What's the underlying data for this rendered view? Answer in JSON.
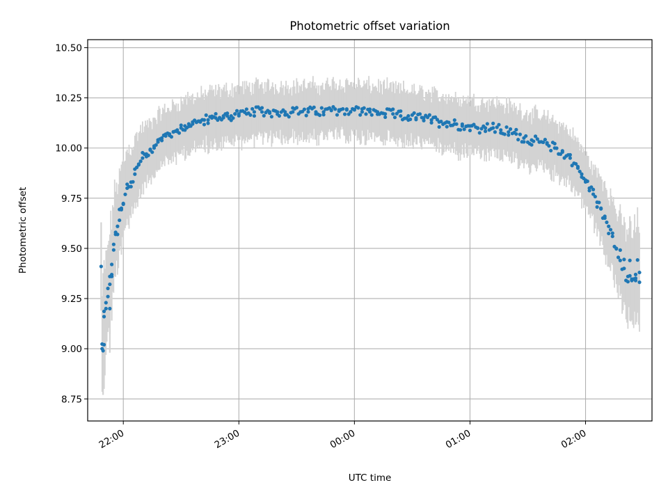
{
  "chart_data": {
    "type": "scatter",
    "title": "Photometric offset variation",
    "xlabel": "UTC time",
    "ylabel": "Photometric offset",
    "x_range_minutes_utc": [
      -138.5,
      154.5
    ],
    "ylim": [
      8.64,
      10.54
    ],
    "grid": true,
    "colors": {
      "points": "#1f77b4",
      "errorbars": "#d3d3d3",
      "grid": "#b0b0b0"
    },
    "xticks": [
      {
        "minutes": -120,
        "label": "22:00"
      },
      {
        "minutes": -60,
        "label": "23:00"
      },
      {
        "minutes": 0,
        "label": "00:00"
      },
      {
        "minutes": 60,
        "label": "01:00"
      },
      {
        "minutes": 120,
        "label": "02:00"
      }
    ],
    "yticks": [
      {
        "value": 8.75,
        "label": "8.75"
      },
      {
        "value": 9.0,
        "label": "9.00"
      },
      {
        "value": 9.25,
        "label": "9.25"
      },
      {
        "value": 9.5,
        "label": "9.50"
      },
      {
        "value": 9.75,
        "label": "9.75"
      },
      {
        "value": 10.0,
        "label": "10.00"
      },
      {
        "value": 10.25,
        "label": "10.25"
      },
      {
        "value": 10.5,
        "label": "10.50"
      }
    ],
    "series": [
      {
        "x": [
          -131,
          -130,
          -129,
          -128,
          -127,
          -126,
          -125,
          -124,
          -123,
          -122,
          -121,
          -120,
          -118,
          -116,
          -114,
          -112,
          -110,
          -108,
          -106,
          -104,
          -102,
          -100,
          -98,
          -96,
          -94,
          -92,
          -90,
          -88,
          -86,
          -84,
          -82,
          -80,
          -78,
          -76,
          -74,
          -72,
          -70,
          -68,
          -66,
          -64,
          -62,
          -60,
          -56,
          -52,
          -48,
          -44,
          -40,
          -36,
          -32,
          -28,
          -24,
          -20,
          -16,
          -12,
          -8,
          -4,
          0,
          4,
          8,
          12,
          16,
          20,
          24,
          28,
          32,
          36,
          40,
          44,
          48,
          52,
          56,
          60,
          64,
          68,
          72,
          76,
          80,
          84,
          88,
          92,
          96,
          100,
          104,
          108,
          112,
          116,
          118,
          120,
          122,
          124,
          126,
          128,
          130,
          132,
          134,
          136,
          138,
          140,
          142,
          144,
          146,
          148
        ],
        "y": [
          9.0,
          9.16,
          9.2,
          9.26,
          9.36,
          9.42,
          9.52,
          9.58,
          9.61,
          9.64,
          9.7,
          9.72,
          9.8,
          9.83,
          9.87,
          9.92,
          9.95,
          9.97,
          9.99,
          10.01,
          10.03,
          10.05,
          10.06,
          10.07,
          10.08,
          10.09,
          10.1,
          10.11,
          10.12,
          10.12,
          10.13,
          10.13,
          10.14,
          10.14,
          10.15,
          10.15,
          10.15,
          10.16,
          10.16,
          10.16,
          10.17,
          10.17,
          10.17,
          10.18,
          10.18,
          10.18,
          10.18,
          10.18,
          10.18,
          10.18,
          10.18,
          10.18,
          10.18,
          10.19,
          10.19,
          10.19,
          10.19,
          10.18,
          10.18,
          10.18,
          10.17,
          10.17,
          10.16,
          10.16,
          10.15,
          10.15,
          10.14,
          10.13,
          10.13,
          10.12,
          10.11,
          10.11,
          10.1,
          10.1,
          10.1,
          10.09,
          10.08,
          10.07,
          10.05,
          10.04,
          10.03,
          10.02,
          10.0,
          9.98,
          9.95,
          9.9,
          9.87,
          9.84,
          9.8,
          9.77,
          9.73,
          9.7,
          9.66,
          9.61,
          9.56,
          9.5,
          9.44,
          9.4,
          9.36,
          9.34,
          9.37,
          9.38
        ]
      }
    ],
    "outliers": [
      {
        "minutes": -131.5,
        "value": 9.41
      },
      {
        "minutes": -130.5,
        "value": 8.99
      },
      {
        "minutes": -130.0,
        "value": 9.02
      },
      {
        "minutes": -127.0,
        "value": 9.2
      },
      {
        "minutes": -126.0,
        "value": 9.36
      },
      {
        "minutes": 143.0,
        "value": 9.44
      },
      {
        "minutes": 146.0,
        "value": 9.34
      }
    ]
  }
}
